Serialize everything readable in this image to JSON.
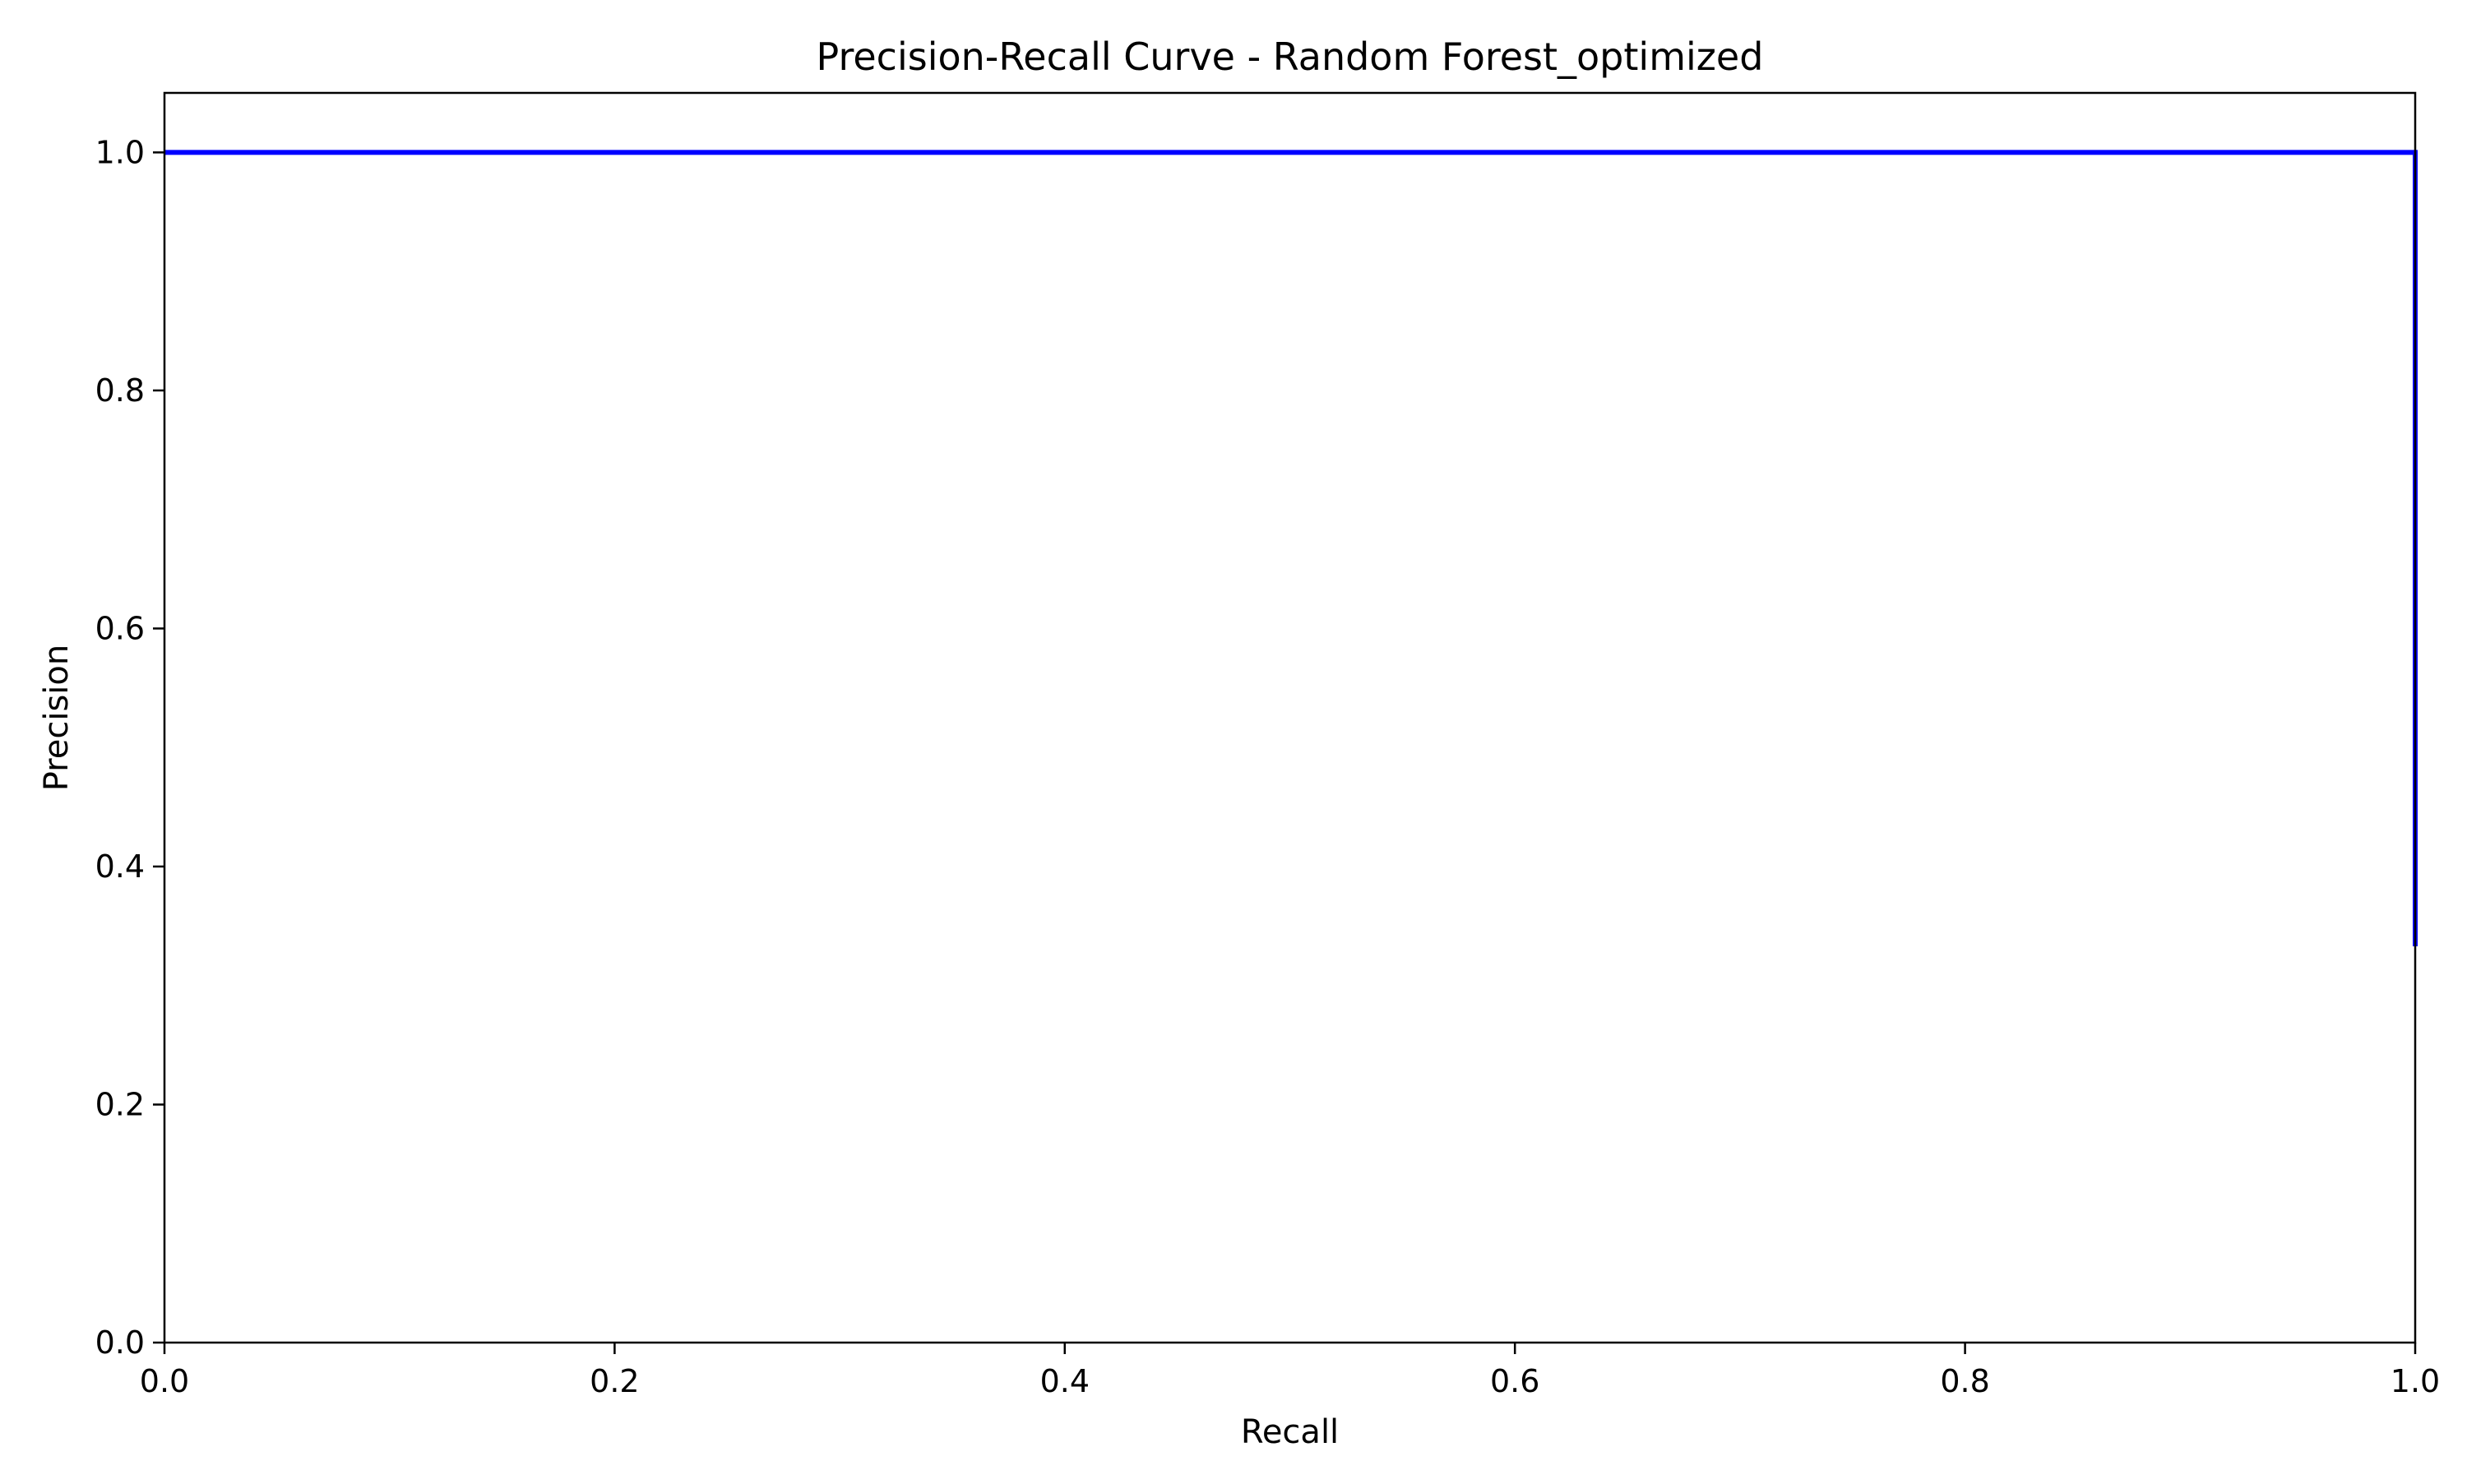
{
  "chart_data": {
    "type": "line",
    "title": "Precision-Recall Curve - Random Forest_optimized",
    "xlabel": "Recall",
    "ylabel": "Precision",
    "xlim": [
      0.0,
      1.0
    ],
    "ylim": [
      0.0,
      1.05
    ],
    "grid": false,
    "x_ticks": [
      0.0,
      0.2,
      0.4,
      0.6,
      0.8,
      1.0
    ],
    "x_tick_labels": [
      "0.0",
      "0.2",
      "0.4",
      "0.6",
      "0.8",
      "1.0"
    ],
    "y_ticks": [
      0.0,
      0.2,
      0.4,
      0.6,
      0.8,
      1.0
    ],
    "y_tick_labels": [
      "0.0",
      "0.2",
      "0.4",
      "0.6",
      "0.8",
      "1.0"
    ],
    "series": [
      {
        "color": "#0000ff",
        "step": "post",
        "x": [
          0.0,
          1.0,
          1.0
        ],
        "y": [
          1.0,
          1.0,
          0.333
        ]
      }
    ]
  }
}
